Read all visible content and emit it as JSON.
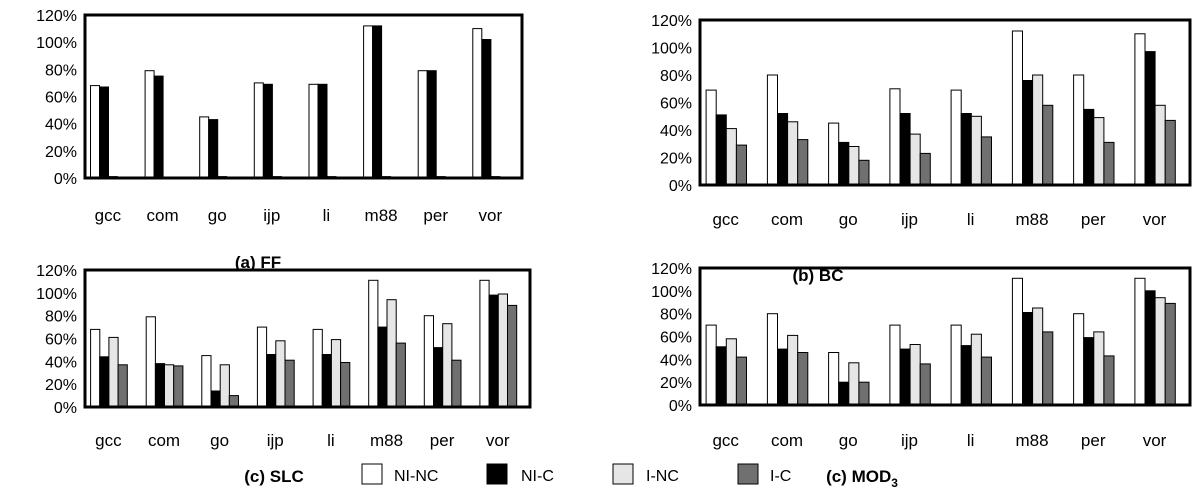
{
  "series_names": [
    "NI-NC",
    "NI-C",
    "I-NC",
    "I-C"
  ],
  "colors": {
    "NI-NC": "#ffffff",
    "NI-C": "#000000",
    "I-NC": "#e6e6e6",
    "I-C": "#707070",
    "frame": "#000000"
  },
  "legend": {
    "items": [
      {
        "label": "NI-NC",
        "color": "#ffffff"
      },
      {
        "label": "NI-C",
        "color": "#000000"
      },
      {
        "label": "I-NC",
        "color": "#e6e6e6"
      },
      {
        "label": "I-C",
        "color": "#707070"
      }
    ]
  },
  "chart_data": [
    {
      "type": "bar",
      "title": "(a) FF",
      "categories": [
        "gcc",
        "com",
        "go",
        "ijp",
        "li",
        "m88",
        "per",
        "vor"
      ],
      "y_ticks": [
        "0%",
        "20%",
        "40%",
        "60%",
        "80%",
        "100%",
        "120%"
      ],
      "ylim": [
        0,
        120
      ],
      "grid": false,
      "series": [
        {
          "name": "NI-NC",
          "values": [
            68,
            79,
            45,
            70,
            69,
            112,
            79,
            110
          ]
        },
        {
          "name": "NI-C",
          "values": [
            67,
            75,
            43,
            69,
            69,
            112,
            79,
            102
          ]
        },
        {
          "name": "I-NC",
          "values": [
            1,
            0,
            1,
            1,
            1,
            1,
            1,
            1
          ]
        },
        {
          "name": "I-C",
          "values": [
            0,
            0,
            0,
            0,
            0,
            0,
            0,
            0
          ]
        }
      ]
    },
    {
      "type": "bar",
      "title": "(b) BC",
      "categories": [
        "gcc",
        "com",
        "go",
        "ijp",
        "li",
        "m88",
        "per",
        "vor"
      ],
      "y_ticks": [
        "0%",
        "20%",
        "40%",
        "60%",
        "80%",
        "100%",
        "120%"
      ],
      "ylim": [
        0,
        120
      ],
      "grid": false,
      "series": [
        {
          "name": "NI-NC",
          "values": [
            69,
            80,
            45,
            70,
            69,
            112,
            80,
            110
          ]
        },
        {
          "name": "NI-C",
          "values": [
            51,
            52,
            31,
            52,
            52,
            76,
            55,
            97
          ]
        },
        {
          "name": "I-NC",
          "values": [
            41,
            46,
            28,
            37,
            50,
            80,
            49,
            58
          ]
        },
        {
          "name": "I-C",
          "values": [
            29,
            33,
            18,
            23,
            35,
            58,
            31,
            47
          ]
        }
      ]
    },
    {
      "type": "bar",
      "title": "(c) SLC",
      "categories": [
        "gcc",
        "com",
        "go",
        "ijp",
        "li",
        "m88",
        "per",
        "vor"
      ],
      "y_ticks": [
        "0%",
        "20%",
        "40%",
        "60%",
        "80%",
        "100%",
        "120%"
      ],
      "ylim": [
        0,
        120
      ],
      "grid": false,
      "series": [
        {
          "name": "NI-NC",
          "values": [
            68,
            79,
            45,
            70,
            68,
            111,
            80,
            111
          ]
        },
        {
          "name": "NI-C",
          "values": [
            44,
            38,
            14,
            46,
            46,
            70,
            52,
            98
          ]
        },
        {
          "name": "I-NC",
          "values": [
            61,
            37,
            37,
            58,
            59,
            94,
            73,
            99
          ]
        },
        {
          "name": "I-C",
          "values": [
            37,
            36,
            10,
            41,
            39,
            56,
            41,
            89
          ]
        }
      ]
    },
    {
      "type": "bar",
      "title_prefix": "(c) MOD",
      "title_sub": "3",
      "categories": [
        "gcc",
        "com",
        "go",
        "ijp",
        "li",
        "m88",
        "per",
        "vor"
      ],
      "y_ticks": [
        "0%",
        "20%",
        "40%",
        "60%",
        "80%",
        "100%",
        "120%"
      ],
      "ylim": [
        0,
        120
      ],
      "grid": false,
      "series": [
        {
          "name": "NI-NC",
          "values": [
            70,
            80,
            46,
            70,
            70,
            111,
            80,
            111
          ]
        },
        {
          "name": "NI-C",
          "values": [
            51,
            49,
            20,
            49,
            52,
            81,
            59,
            100
          ]
        },
        {
          "name": "I-NC",
          "values": [
            58,
            61,
            37,
            53,
            62,
            85,
            64,
            94
          ]
        },
        {
          "name": "I-C",
          "values": [
            42,
            46,
            20,
            36,
            42,
            64,
            43,
            89
          ]
        }
      ]
    }
  ]
}
